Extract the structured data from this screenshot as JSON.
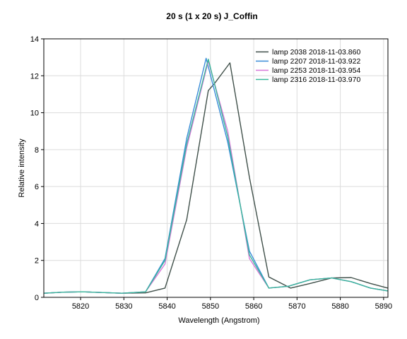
{
  "chart_data": {
    "type": "line",
    "title": "20 s (1 x 20 s)   J_Coffin",
    "xlabel": "Wavelength (Angstrom)",
    "ylabel": "Relative intensity",
    "xlim": [
      5811.5,
      5891
    ],
    "ylim": [
      0,
      14
    ],
    "xticks": [
      5820,
      5830,
      5840,
      5850,
      5860,
      5870,
      5880,
      5890
    ],
    "yticks": [
      0,
      2,
      4,
      6,
      8,
      10,
      12,
      14
    ],
    "grid": true,
    "legend_position": "top-right",
    "series": [
      {
        "name": "lamp 2038  2018-11-03.860",
        "color": "#40504a",
        "points": [
          [
            5811.5,
            0.22
          ],
          [
            5816,
            0.28
          ],
          [
            5820.5,
            0.3
          ],
          [
            5825,
            0.26
          ],
          [
            5829.5,
            0.22
          ],
          [
            5835,
            0.24
          ],
          [
            5839.5,
            0.5
          ],
          [
            5844.5,
            4.2
          ],
          [
            5849.5,
            11.2
          ],
          [
            5851,
            11.6
          ],
          [
            5854.5,
            12.7
          ],
          [
            5859,
            6.5
          ],
          [
            5863.5,
            1.1
          ],
          [
            5868.5,
            0.5
          ],
          [
            5873,
            0.75
          ],
          [
            5878,
            1.05
          ],
          [
            5882.5,
            1.07
          ],
          [
            5887,
            0.75
          ],
          [
            5891,
            0.5
          ]
        ]
      },
      {
        "name": "lamp 2207  2018-11-03.922",
        "color": "#3a8cd8",
        "points": [
          [
            5811.5,
            0.22
          ],
          [
            5816,
            0.28
          ],
          [
            5820.5,
            0.3
          ],
          [
            5825,
            0.26
          ],
          [
            5829.5,
            0.22
          ],
          [
            5835,
            0.3
          ],
          [
            5839.5,
            2.1
          ],
          [
            5844.5,
            8.6
          ],
          [
            5849,
            12.95
          ],
          [
            5854,
            8.4
          ],
          [
            5859,
            2.5
          ],
          [
            5863.5,
            0.5
          ],
          [
            5868,
            0.6
          ],
          [
            5873,
            0.95
          ],
          [
            5878,
            1.05
          ],
          [
            5882.5,
            0.85
          ],
          [
            5887,
            0.5
          ],
          [
            5891,
            0.35
          ]
        ]
      },
      {
        "name": "lamp 2253  2018-11-03.954",
        "color": "#d778d8",
        "points": [
          [
            5811.5,
            0.22
          ],
          [
            5816,
            0.28
          ],
          [
            5820.5,
            0.3
          ],
          [
            5825,
            0.26
          ],
          [
            5829.5,
            0.22
          ],
          [
            5835,
            0.3
          ],
          [
            5839.5,
            1.8
          ],
          [
            5844.5,
            8.1
          ],
          [
            5849.5,
            12.8
          ],
          [
            5854,
            9.0
          ],
          [
            5859,
            2.1
          ],
          [
            5863.5,
            0.5
          ],
          [
            5868,
            0.6
          ],
          [
            5873,
            0.95
          ],
          [
            5878,
            1.05
          ],
          [
            5882.5,
            0.85
          ],
          [
            5887,
            0.5
          ],
          [
            5891,
            0.35
          ]
        ]
      },
      {
        "name": "lamp 2316  2018-11-03.970",
        "color": "#38b89a",
        "points": [
          [
            5811.5,
            0.22
          ],
          [
            5816,
            0.28
          ],
          [
            5820.5,
            0.3
          ],
          [
            5825,
            0.26
          ],
          [
            5829.5,
            0.22
          ],
          [
            5835,
            0.3
          ],
          [
            5839.5,
            2.0
          ],
          [
            5844.5,
            8.3
          ],
          [
            5849.5,
            12.9
          ],
          [
            5854,
            8.7
          ],
          [
            5859,
            2.3
          ],
          [
            5863.5,
            0.5
          ],
          [
            5868,
            0.6
          ],
          [
            5873,
            0.95
          ],
          [
            5878,
            1.05
          ],
          [
            5882.5,
            0.85
          ],
          [
            5887,
            0.5
          ],
          [
            5891,
            0.35
          ]
        ]
      }
    ]
  }
}
